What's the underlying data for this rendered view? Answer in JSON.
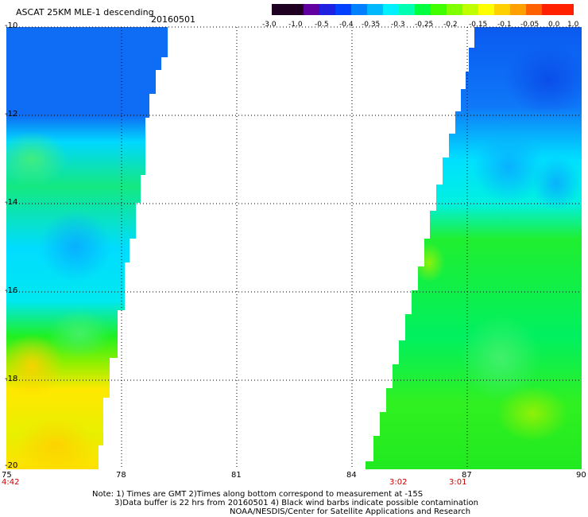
{
  "header": {
    "title": "ASCAT 25KM MLE-1 descending",
    "date": "20160501"
  },
  "colorbar": {
    "labels": [
      "-3.0",
      "-1.0",
      "-0.5",
      "-0.4",
      "-0.35",
      "-0.3",
      "-0.25",
      "-0.2",
      "-0.15",
      "-0.1",
      "-0.05",
      "0.0",
      "1.0"
    ],
    "colors": [
      "#000000",
      "#5a0090",
      "#2020e0",
      "#0050ff",
      "#0090ff",
      "#00c8ff",
      "#00ffe0",
      "#00ff80",
      "#20ff00",
      "#a0ff00",
      "#ffff00",
      "#ff9000",
      "#ff0000"
    ]
  },
  "map": {
    "lat_labels": [
      "-10",
      "-12",
      "-14",
      "-16",
      "-18",
      "-20"
    ],
    "lon_labels": [
      "75",
      "78",
      "81",
      "84",
      "87",
      "90"
    ],
    "lat_range": [
      -20,
      -10
    ],
    "lon_range": [
      75,
      90
    ],
    "swath_times": [
      {
        "label": "4:42",
        "lon": 75
      },
      {
        "label": "3:02",
        "lon": 85.2
      },
      {
        "label": "3:01",
        "lon": 86.8
      }
    ]
  },
  "notes": {
    "line1": "Note: 1) Times are GMT 2)Times along bottom correspond to measurement at -15S",
    "line2": "3)Data buffer is 22 hrs from 20160501 4) Black wind barbs indicate possible contamination",
    "line3": "NOAA/NESDIS/Center for Satellite Applications and Research"
  }
}
